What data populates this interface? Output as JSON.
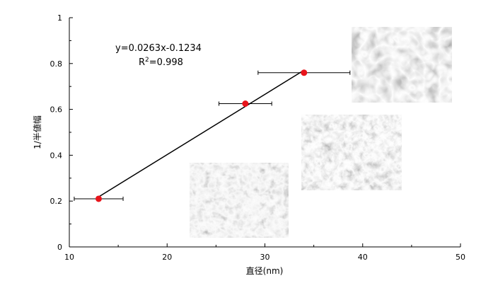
{
  "chart_data": {
    "type": "scatter",
    "xlabel": "直径(nm)",
    "ylabel": "1/半値幅",
    "xlim": [
      10,
      50
    ],
    "ylim": [
      0,
      1
    ],
    "xticks": [
      "10",
      "20",
      "30",
      "40",
      "50"
    ],
    "yticks": [
      "0",
      "0.2",
      "0.4",
      "0.6",
      "0.8",
      "1"
    ],
    "grid": false,
    "legend": "none",
    "points": [
      {
        "x": 13,
        "y": 0.21,
        "xerr": 2.5
      },
      {
        "x": 28,
        "y": 0.625,
        "xerr": 2.7
      },
      {
        "x": 34,
        "y": 0.76,
        "xerr": 4.7
      }
    ],
    "fit_line": {
      "slope": 0.0263,
      "intercept": -0.1234,
      "x_range": [
        13,
        34
      ]
    },
    "annotations": {
      "equation": "y=0.0263x-0.1234",
      "r2_prefix": "R",
      "r2_sup": "2",
      "r2_value": "=0.998"
    },
    "colors": {
      "marker": "#e8141b",
      "line": "#000000"
    }
  }
}
